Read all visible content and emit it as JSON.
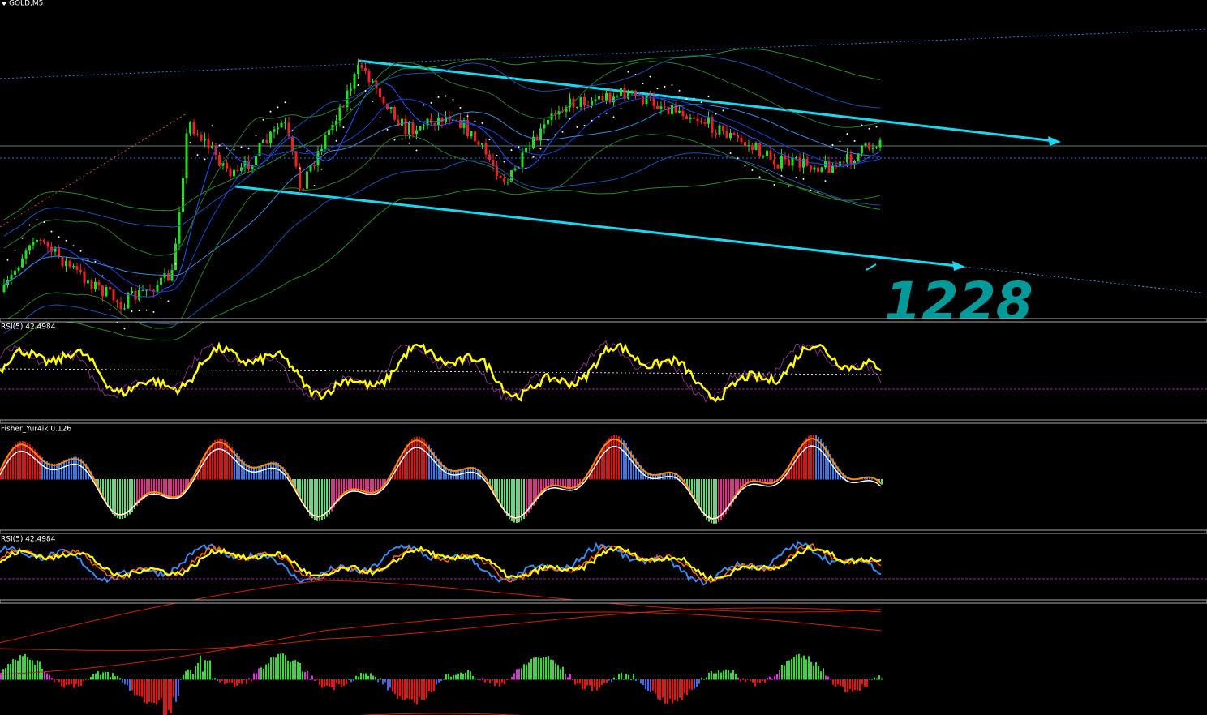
{
  "header": {
    "symbol": "GOLD,M5"
  },
  "panes": [
    {
      "label": "RSI(5) 42.4984"
    },
    {
      "label": "Fisher_Yur4ik 0.126"
    },
    {
      "label": "RSI(5) 42.4984"
    }
  ],
  "annotation": "1228"
}
